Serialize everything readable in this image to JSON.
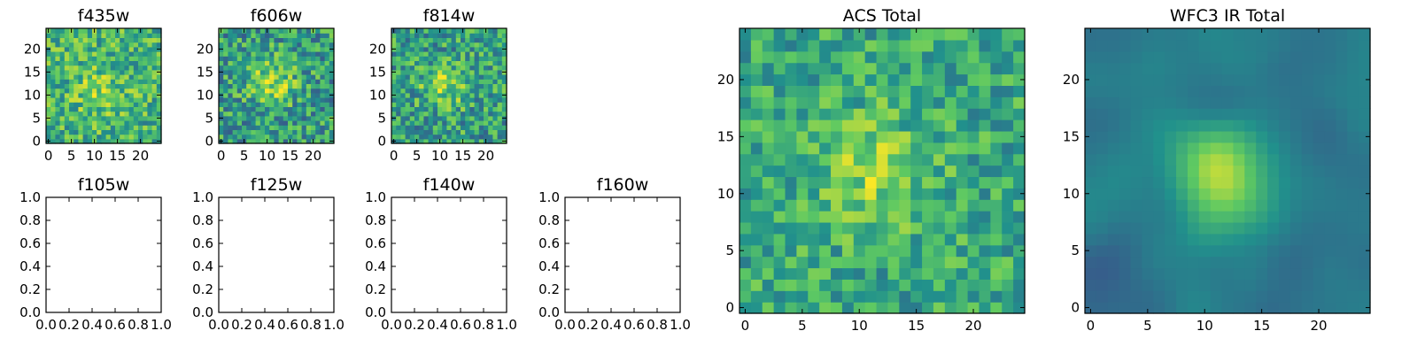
{
  "figure": {
    "background": "#ffffff",
    "colormap": "viridis",
    "colors": [
      "#440154",
      "#3b528b",
      "#21918c",
      "#5ec962",
      "#fde725"
    ]
  },
  "chart_data": [
    {
      "type": "heatmap",
      "title": "f435w",
      "xlim": [
        -0.5,
        24.5
      ],
      "ylim": [
        -0.5,
        24.5
      ],
      "xticks": [
        0,
        5,
        10,
        15,
        20
      ],
      "yticks": [
        0,
        5,
        10,
        15,
        20
      ],
      "grid_size": [
        25,
        25
      ],
      "colormap": "viridis",
      "pattern": "noise",
      "blob": {
        "cx": 11,
        "cy": 11,
        "sigma": 4,
        "amplitude": 0.15
      },
      "noise": 0.24,
      "base": 0.64,
      "seed": 11
    },
    {
      "type": "heatmap",
      "title": "f606w",
      "xlim": [
        -0.5,
        24.5
      ],
      "ylim": [
        -0.5,
        24.5
      ],
      "xticks": [
        0,
        5,
        10,
        15,
        20
      ],
      "yticks": [
        0,
        5,
        10,
        15,
        20
      ],
      "grid_size": [
        25,
        25
      ],
      "colormap": "viridis",
      "pattern": "noise",
      "blob": {
        "cx": 11,
        "cy": 13,
        "sigma": 3.5,
        "amplitude": 0.3
      },
      "noise": 0.26,
      "base": 0.55,
      "seed": 22
    },
    {
      "type": "heatmap",
      "title": "f814w",
      "xlim": [
        -0.5,
        24.5
      ],
      "ylim": [
        -0.5,
        24.5
      ],
      "xticks": [
        0,
        5,
        10,
        15,
        20
      ],
      "yticks": [
        0,
        5,
        10,
        15,
        20
      ],
      "grid_size": [
        25,
        25
      ],
      "colormap": "viridis",
      "pattern": "noise",
      "blob": {
        "cx": 11,
        "cy": 12,
        "sigma": 3.5,
        "amplitude": 0.25
      },
      "noise": 0.26,
      "base": 0.56,
      "seed": 33
    },
    {
      "type": "heatmap",
      "title": "f105w",
      "xlim": [
        0,
        1
      ],
      "ylim": [
        0,
        1
      ],
      "xticks": [
        "0.0",
        "0.2",
        "0.4",
        "0.6",
        "0.8",
        "1.0"
      ],
      "yticks": [
        "0.0",
        "0.2",
        "0.4",
        "0.6",
        "0.8",
        "1.0"
      ],
      "pattern": "empty"
    },
    {
      "type": "heatmap",
      "title": "f125w",
      "xlim": [
        0,
        1
      ],
      "ylim": [
        0,
        1
      ],
      "xticks": [
        "0.0",
        "0.2",
        "0.4",
        "0.6",
        "0.8",
        "1.0"
      ],
      "yticks": [
        "0.0",
        "0.2",
        "0.4",
        "0.6",
        "0.8",
        "1.0"
      ],
      "pattern": "empty"
    },
    {
      "type": "heatmap",
      "title": "f140w",
      "xlim": [
        0,
        1
      ],
      "ylim": [
        0,
        1
      ],
      "xticks": [
        "0.0",
        "0.2",
        "0.4",
        "0.6",
        "0.8",
        "1.0"
      ],
      "yticks": [
        "0.0",
        "0.2",
        "0.4",
        "0.6",
        "0.8",
        "1.0"
      ],
      "pattern": "empty"
    },
    {
      "type": "heatmap",
      "title": "f160w",
      "xlim": [
        0,
        1
      ],
      "ylim": [
        0,
        1
      ],
      "xticks": [
        "0.0",
        "0.2",
        "0.4",
        "0.6",
        "0.8",
        "1.0"
      ],
      "yticks": [
        "0.0",
        "0.2",
        "0.4",
        "0.6",
        "0.8",
        "1.0"
      ],
      "pattern": "empty"
    },
    {
      "type": "heatmap",
      "title": "ACS Total",
      "xlim": [
        -0.5,
        24.5
      ],
      "ylim": [
        -0.5,
        24.5
      ],
      "xticks": [
        0,
        5,
        10,
        15,
        20
      ],
      "yticks": [
        0,
        5,
        10,
        15,
        20
      ],
      "grid_size": [
        25,
        25
      ],
      "colormap": "viridis",
      "pattern": "noise",
      "blob": {
        "cx": 11,
        "cy": 12,
        "sigma": 3.5,
        "amplitude": 0.22
      },
      "noise": 0.2,
      "base": 0.6,
      "seed": 44
    },
    {
      "type": "heatmap",
      "title": "WFC3 IR Total",
      "xlim": [
        -0.5,
        24.5
      ],
      "ylim": [
        -0.5,
        24.5
      ],
      "xticks": [
        0,
        5,
        10,
        15,
        20
      ],
      "yticks": [
        0,
        5,
        10,
        15,
        20
      ],
      "grid_size": [
        25,
        25
      ],
      "colormap": "viridis",
      "pattern": "smooth",
      "blob": {
        "cx": 11.5,
        "cy": 12,
        "sigma": 2.8,
        "amplitude": 0.5
      },
      "noise": 0.07,
      "base": 0.42,
      "seed": 55
    }
  ]
}
